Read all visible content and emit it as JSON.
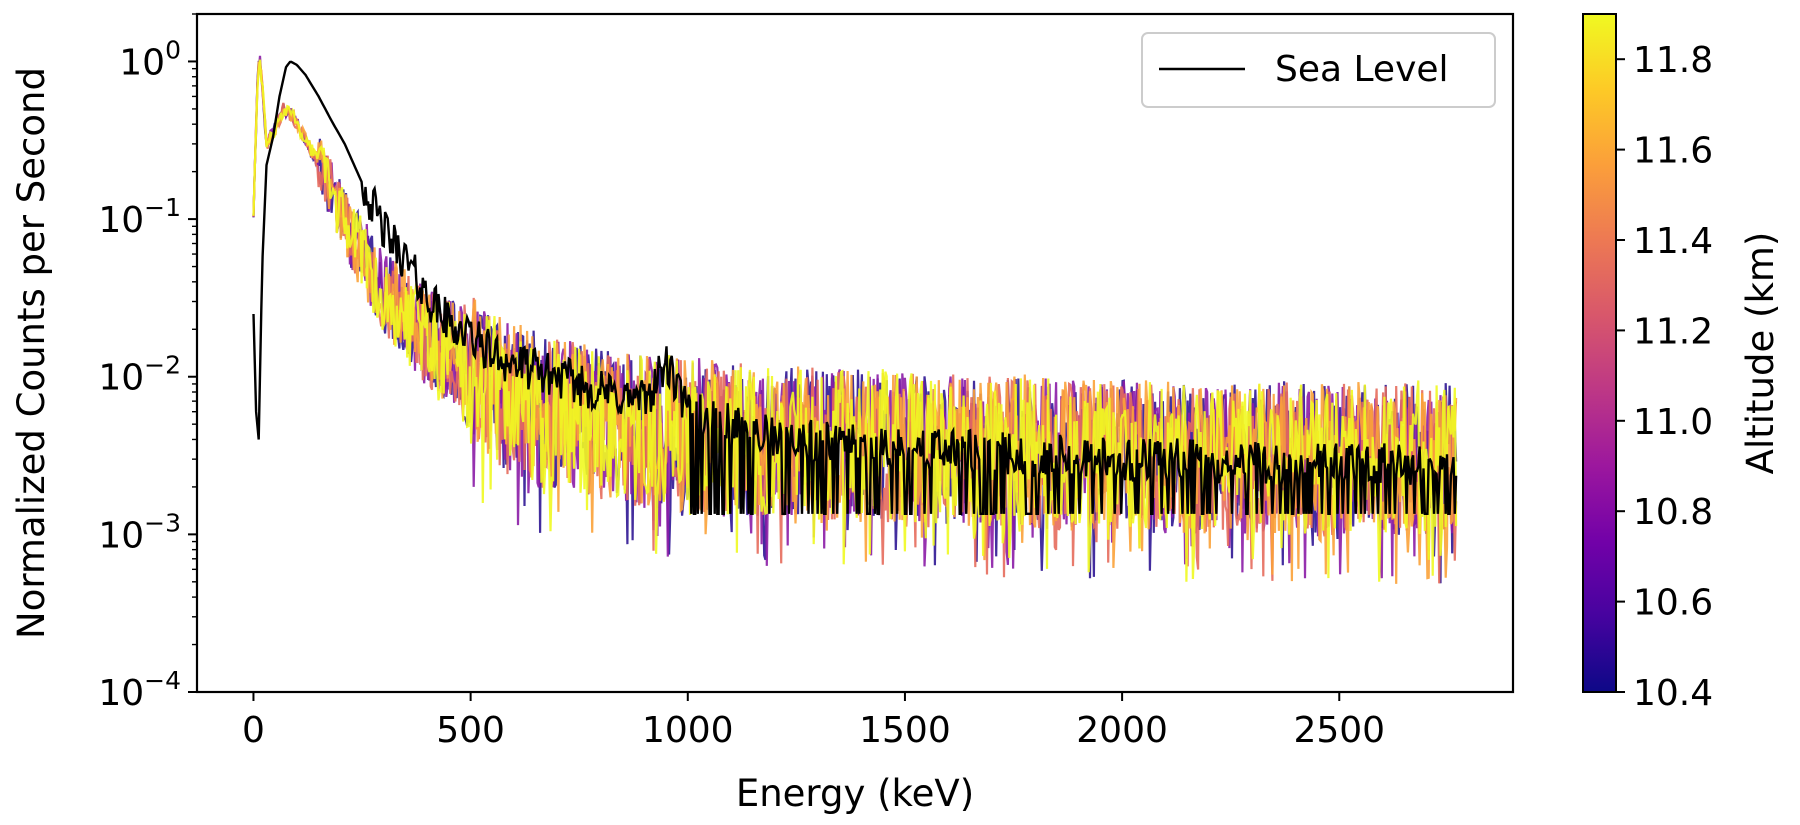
{
  "chart_data": {
    "type": "line",
    "title": "",
    "xlabel": "Energy (keV)",
    "ylabel": "Normalized Counts per Second",
    "xlim": [
      -130,
      2900
    ],
    "ylim": [
      0.0001,
      2
    ],
    "yscale": "log",
    "x_ticks": [
      {
        "value": 0,
        "label": "0"
      },
      {
        "value": 500,
        "label": "500"
      },
      {
        "value": 1000,
        "label": "1000"
      },
      {
        "value": 1500,
        "label": "1500"
      },
      {
        "value": 2000,
        "label": "2000"
      },
      {
        "value": 2500,
        "label": "2500"
      }
    ],
    "y_ticks": [
      {
        "value": 1,
        "base": "10",
        "exp": "0"
      },
      {
        "value": 0.1,
        "base": "10",
        "exp": "−1"
      },
      {
        "value": 0.01,
        "base": "10",
        "exp": "−2"
      },
      {
        "value": 0.001,
        "base": "10",
        "exp": "−3"
      },
      {
        "value": 0.0001,
        "base": "10",
        "exp": "−4"
      }
    ],
    "grid": false,
    "legend": {
      "placement": "top-right",
      "entries": [
        {
          "label": "Sea Level",
          "color": "#000000"
        }
      ]
    },
    "sea_level": {
      "name": "Sea Level",
      "color": "#000000",
      "points": [
        [
          0,
          0.025
        ],
        [
          6,
          0.006
        ],
        [
          12,
          0.004
        ],
        [
          20,
          0.05
        ],
        [
          30,
          0.22
        ],
        [
          45,
          0.33
        ],
        [
          60,
          0.6
        ],
        [
          75,
          0.92
        ],
        [
          85,
          1.0
        ],
        [
          100,
          0.95
        ],
        [
          120,
          0.82
        ],
        [
          150,
          0.6
        ],
        [
          180,
          0.42
        ],
        [
          210,
          0.3
        ],
        [
          250,
          0.17
        ],
        [
          300,
          0.085
        ],
        [
          350,
          0.055
        ],
        [
          400,
          0.032
        ],
        [
          450,
          0.022
        ],
        [
          500,
          0.018
        ],
        [
          550,
          0.014
        ],
        [
          600,
          0.012
        ],
        [
          700,
          0.01
        ],
        [
          800,
          0.008
        ],
        [
          900,
          0.007
        ],
        [
          950,
          0.012
        ],
        [
          1000,
          0.006
        ],
        [
          1200,
          0.004
        ],
        [
          1500,
          0.0035
        ],
        [
          2000,
          0.003
        ],
        [
          2500,
          0.0028
        ],
        [
          2770,
          0.0027
        ]
      ]
    },
    "flight_envelope": [
      [
        0,
        0.1
      ],
      [
        10,
        0.9
      ],
      [
        15,
        1.0
      ],
      [
        22,
        0.6
      ],
      [
        30,
        0.3
      ],
      [
        45,
        0.35
      ],
      [
        70,
        0.5
      ],
      [
        90,
        0.45
      ],
      [
        120,
        0.32
      ],
      [
        160,
        0.2
      ],
      [
        200,
        0.11
      ],
      [
        250,
        0.06
      ],
      [
        300,
        0.035
      ],
      [
        400,
        0.018
      ],
      [
        500,
        0.011
      ],
      [
        600,
        0.007
      ],
      [
        800,
        0.005
      ],
      [
        1000,
        0.0042
      ],
      [
        1500,
        0.0035
      ],
      [
        2000,
        0.0031
      ],
      [
        2500,
        0.003
      ],
      [
        2770,
        0.003
      ]
    ],
    "flight_series": [
      {
        "altitude": 10.45,
        "color": "#2f1694"
      },
      {
        "altitude": 10.8,
        "color": "#8b1ca6"
      },
      {
        "altitude": 11.3,
        "color": "#e66c5c"
      },
      {
        "altitude": 11.65,
        "color": "#fba238"
      },
      {
        "altitude": 11.88,
        "color": "#f0f921"
      }
    ],
    "colorbar": {
      "label": "Altitude (km)",
      "range": [
        10.4,
        11.9
      ],
      "ticks": [
        "10.4",
        "10.6",
        "10.8",
        "11.0",
        "11.2",
        "11.4",
        "11.6",
        "11.8"
      ],
      "colormap": [
        "#0d0887",
        "#46039f",
        "#7201a8",
        "#9c179e",
        "#bd3786",
        "#d8576b",
        "#ed7953",
        "#fb9f3a",
        "#fdca26",
        "#f0f921"
      ]
    }
  }
}
